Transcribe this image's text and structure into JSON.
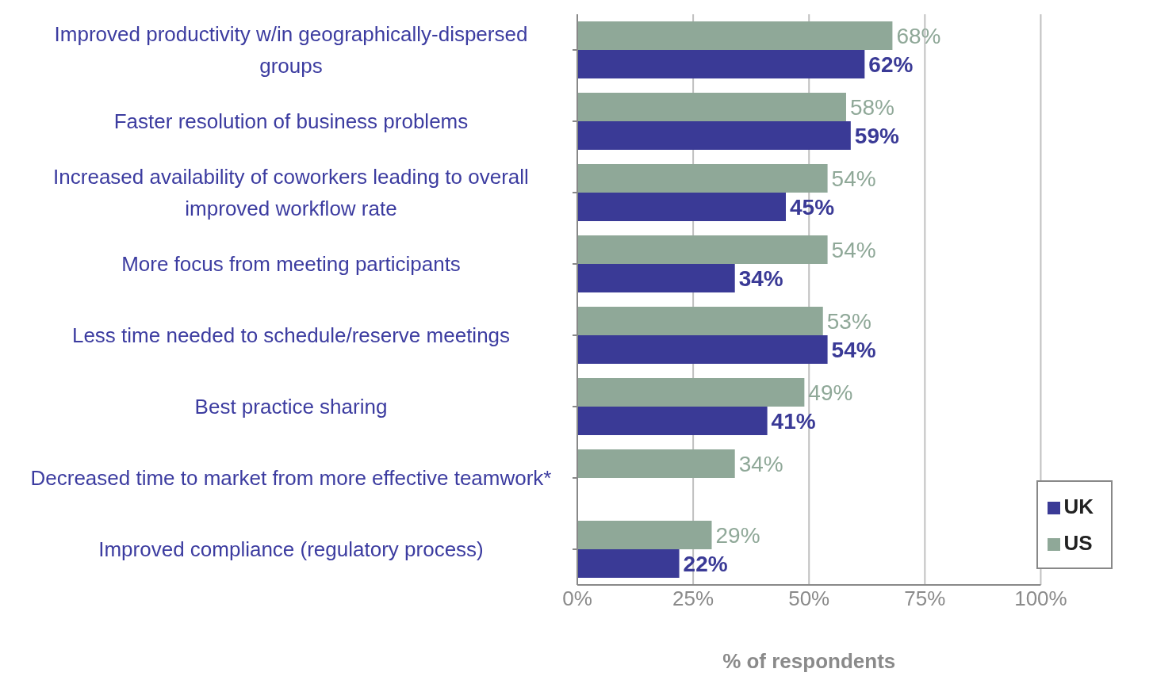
{
  "chart_data": {
    "type": "bar",
    "orientation": "horizontal",
    "xlabel": "% of respondents",
    "categories": [
      "Improved productivity w/in geographically-dispersed groups",
      "Faster resolution of business problems",
      "Increased availability of coworkers leading to overall improved workflow rate",
      "More focus from meeting participants",
      "Less time needed to schedule/reserve meetings",
      "Best practice sharing",
      "Decreased time to market from more effective teamwork*",
      "Improved compliance (regulatory process)"
    ],
    "series": [
      {
        "name": "US",
        "color": "#8fa898",
        "values": [
          68,
          58,
          54,
          54,
          53,
          49,
          34,
          29
        ],
        "value_labels": [
          "68%",
          "58%",
          "54%",
          "54%",
          "53%",
          "49%",
          "34%",
          "29%"
        ]
      },
      {
        "name": "UK",
        "color": "#3a3a96",
        "values": [
          62,
          59,
          45,
          34,
          54,
          41,
          null,
          22
        ],
        "value_labels": [
          "62%",
          "59%",
          "45%",
          "34%",
          "54%",
          "41%",
          null,
          "22%"
        ]
      }
    ],
    "xlim": [
      0,
      100
    ],
    "xticks": [
      {
        "value": 0,
        "label": "0%"
      },
      {
        "value": 25,
        "label": "25%"
      },
      {
        "value": 50,
        "label": "50%"
      },
      {
        "value": 75,
        "label": "75%"
      },
      {
        "value": 100,
        "label": "100%"
      }
    ],
    "grid": "x",
    "legend": "bottom right"
  }
}
